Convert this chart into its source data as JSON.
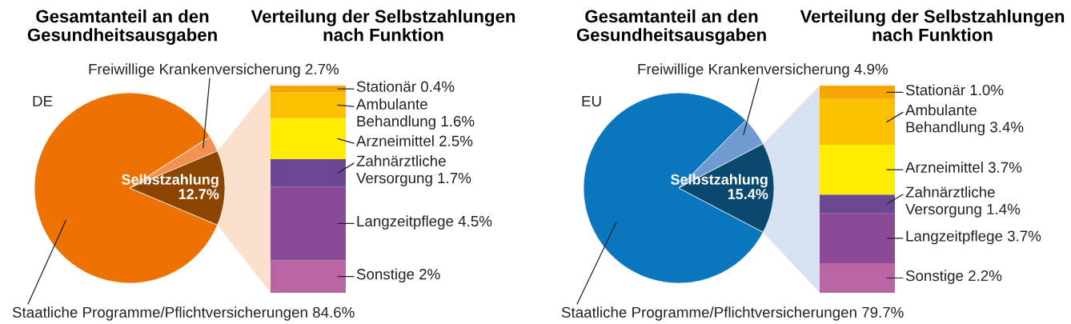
{
  "chart_data": [
    {
      "type": "pie",
      "title": "Gesamtanteil an den Gesundheitsausgaben",
      "categories": [
        "Staatliche Programme/Pflichtversicherungen",
        "Freiwillige Krankenversicherung",
        "Selbstzahlung"
      ],
      "values": [
        84.6,
        2.7,
        12.7
      ],
      "value_labels": [
        "84.6%",
        "2.7%",
        "12.7%"
      ],
      "colors": [
        "#ee7203",
        "#f39250",
        "#8c4500"
      ],
      "annotations": [
        "DE"
      ]
    },
    {
      "type": "bar",
      "stacked": true,
      "title": "Verteilung der Selbstzahlungen nach Funktion",
      "categories": [
        null
      ],
      "series": [
        {
          "color": "#b964a3",
          "values": [
            2
          ],
          "value_labels": [
            "Sonstige 2%"
          ]
        },
        {
          "color": "#8a4a96",
          "values": [
            4.5
          ],
          "value_labels": [
            "Langzeitpflege 4.5%"
          ]
        },
        {
          "color": "#6a4893",
          "values": [
            1.7
          ],
          "value_labels": [
            "Zahnärztliche Versorgung 1.7%"
          ]
        },
        {
          "color": "#ffec00",
          "values": [
            2.5
          ],
          "value_labels": [
            "Arzneimittel 2.5%"
          ]
        },
        {
          "color": "#fcc000",
          "values": [
            1.6
          ],
          "value_labels": [
            "Ambulante Behandlung 1.6%"
          ]
        },
        {
          "color": "#f5a500",
          "values": [
            0.4
          ],
          "value_labels": [
            "Stationär 0.4%"
          ]
        }
      ]
    },
    {
      "type": "pie",
      "title": "Gesamtanteil an den Gesundheitsausgaben",
      "categories": [
        "Staatliche Programme/Pflichtversicherungen",
        "Freiwillige Krankenversicherung",
        "Selbstzahlung"
      ],
      "values": [
        79.7,
        4.9,
        15.4
      ],
      "value_labels": [
        "79.7%",
        "4.9%",
        "15.4%"
      ],
      "colors": [
        "#0a76bd",
        "#6f9bd2",
        "#0b4870"
      ],
      "annotations": [
        "EU"
      ]
    },
    {
      "type": "bar",
      "stacked": true,
      "title": "Verteilung der Selbstzahlungen nach Funktion",
      "categories": [
        null
      ],
      "series": [
        {
          "color": "#b964a3",
          "values": [
            2.2
          ],
          "value_labels": [
            "Sonstige 2.2%"
          ]
        },
        {
          "color": "#8a4a96",
          "values": [
            3.7
          ],
          "value_labels": [
            "Langzeitpflege 3.7%"
          ]
        },
        {
          "color": "#6a4893",
          "values": [
            1.4
          ],
          "value_labels": [
            "Zahnärztliche Versorgung 1.4%"
          ]
        },
        {
          "color": "#ffec00",
          "values": [
            3.7
          ],
          "value_labels": [
            "Arzneimittel 3.7%"
          ]
        },
        {
          "color": "#fcc000",
          "values": [
            3.4
          ],
          "value_labels": [
            "Ambulante Behandlung 3.4%"
          ]
        },
        {
          "color": "#f5a500",
          "values": [
            1.0
          ],
          "value_labels": [
            "Stationär 1.0%"
          ]
        }
      ]
    }
  ]
}
